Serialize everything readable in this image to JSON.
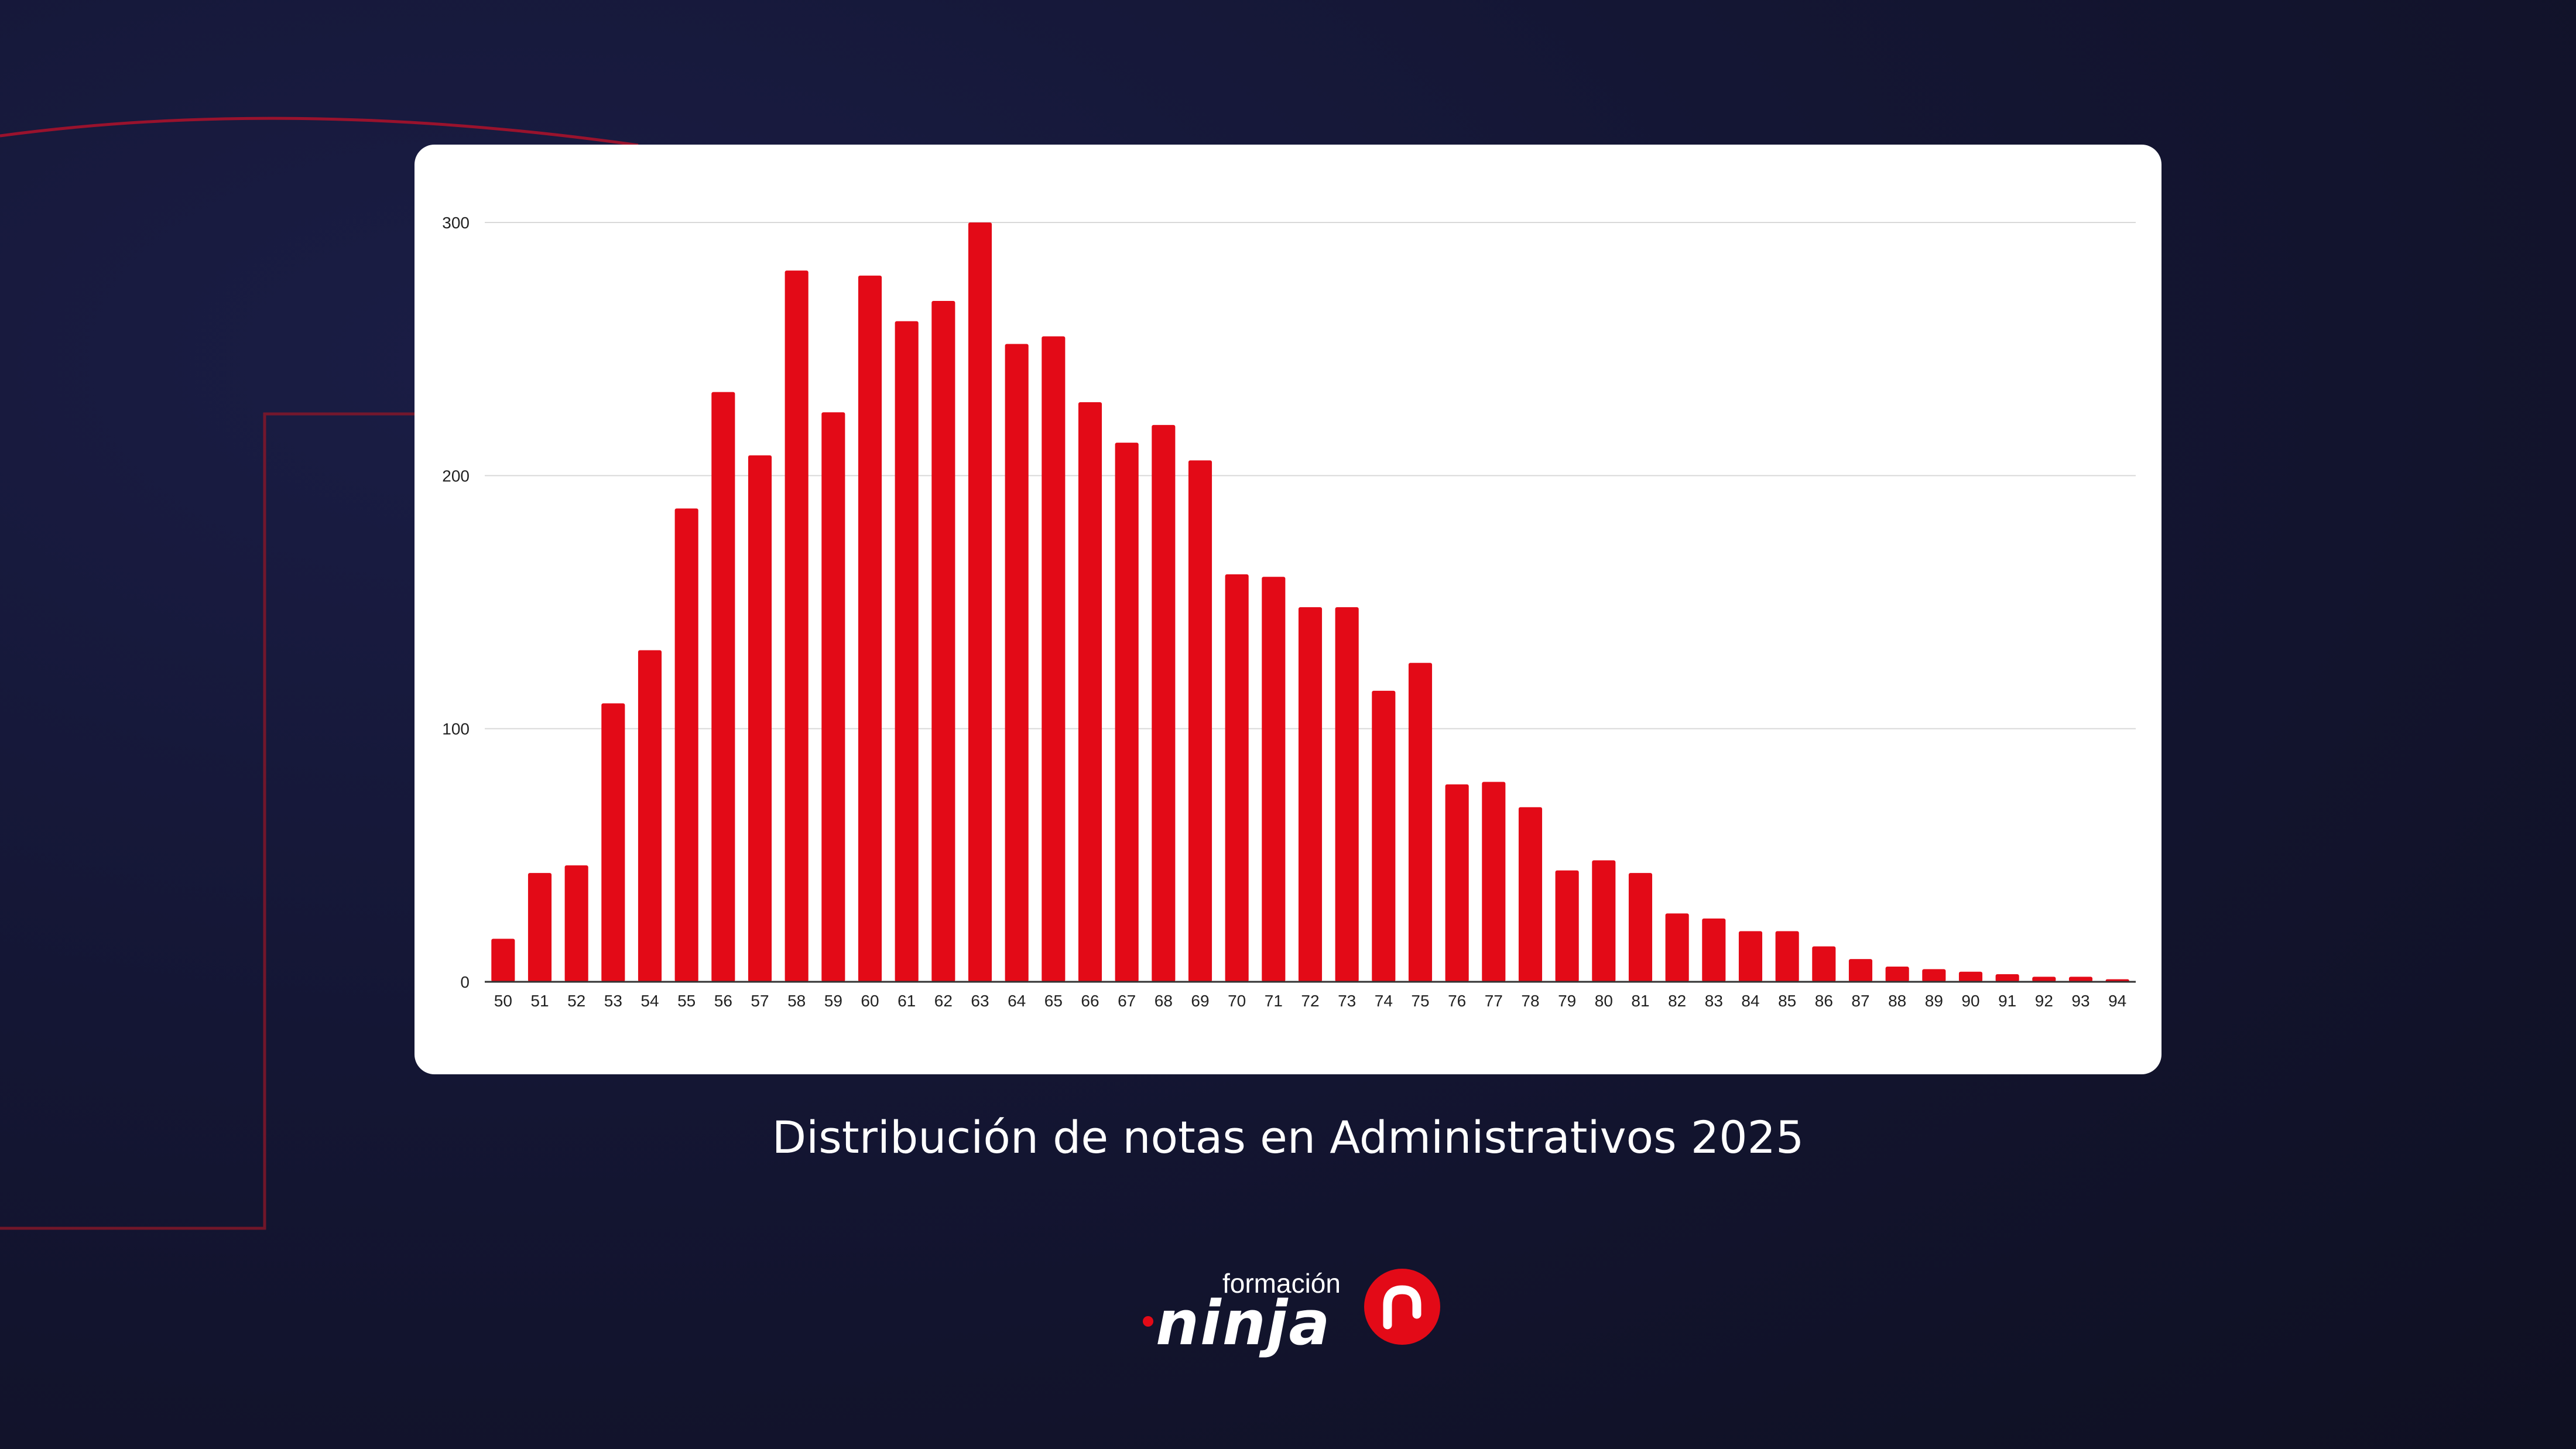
{
  "caption": "Distribución de notas en Administrativos 2025",
  "logo": {
    "superscript": "formación",
    "wordmark": "ninja"
  },
  "colors": {
    "bar": "#e30a17",
    "accent": "#e30a17",
    "background": "#141634",
    "card": "#ffffff",
    "grid": "#d9d9d9"
  },
  "chart_data": {
    "type": "bar",
    "title": "",
    "xlabel": "",
    "ylabel": "",
    "ylim": [
      0,
      300
    ],
    "yticks": [
      0,
      100,
      200,
      300
    ],
    "grid": true,
    "categories": [
      "50",
      "51",
      "52",
      "53",
      "54",
      "55",
      "56",
      "57",
      "58",
      "59",
      "60",
      "61",
      "62",
      "63",
      "64",
      "65",
      "66",
      "67",
      "68",
      "69",
      "70",
      "71",
      "72",
      "73",
      "74",
      "75",
      "76",
      "77",
      "78",
      "79",
      "80",
      "81",
      "82",
      "83",
      "84",
      "85",
      "86",
      "87",
      "88",
      "89",
      "90",
      "91",
      "92",
      "93",
      "94"
    ],
    "values": [
      17,
      43,
      46,
      110,
      131,
      187,
      233,
      208,
      281,
      225,
      279,
      261,
      269,
      300,
      252,
      255,
      229,
      213,
      220,
      206,
      161,
      160,
      148,
      148,
      115,
      126,
      78,
      79,
      69,
      44,
      48,
      43,
      27,
      25,
      20,
      20,
      14,
      9,
      6,
      5,
      4,
      3,
      2,
      2,
      1
    ]
  }
}
